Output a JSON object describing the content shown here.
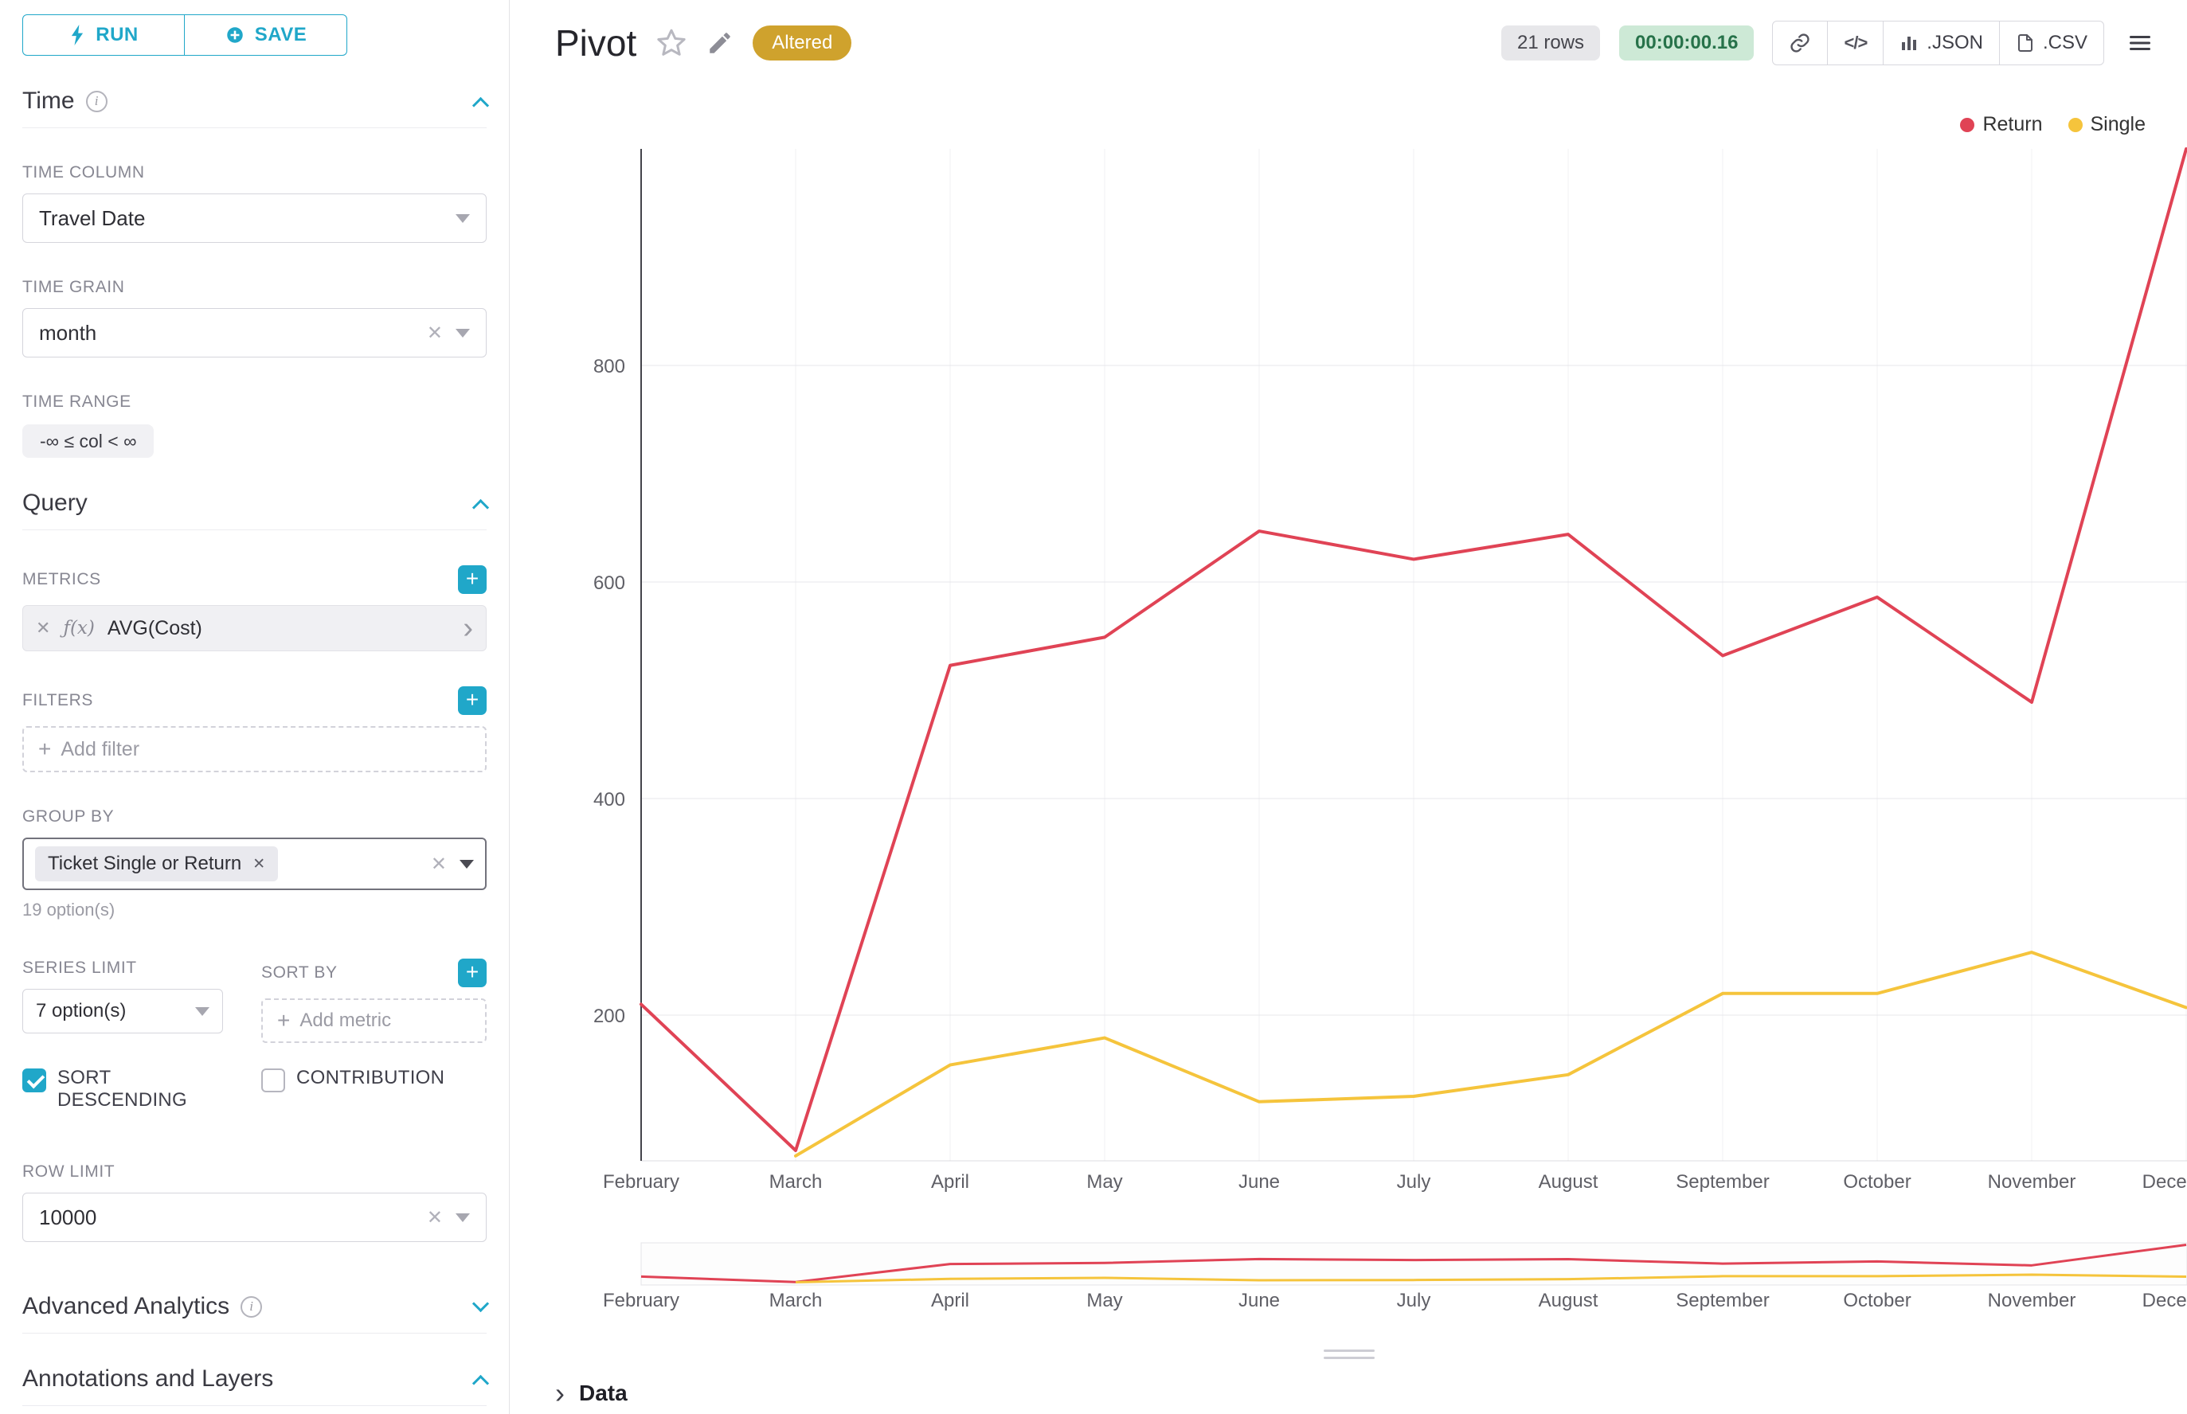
{
  "icons": {
    "plus": "+",
    "close": "✕",
    "chevron_right": "›",
    "info_i": "i",
    "code": "</>"
  },
  "colors": {
    "accent": "#20a7c9",
    "series_return": "#e04355",
    "series_single": "#f5c43c",
    "altered_bg": "#cfa22d",
    "timer_bg": "#cde9d6",
    "timer_text": "#27724a"
  },
  "sidebar": {
    "run_label": "RUN",
    "save_label": "SAVE",
    "time": {
      "title": "Time",
      "time_column_label": "TIME COLUMN",
      "time_column_value": "Travel Date",
      "time_grain_label": "TIME GRAIN",
      "time_grain_value": "month",
      "time_range_label": "TIME RANGE",
      "time_range_value": "-∞ ≤ col < ∞"
    },
    "query": {
      "title": "Query",
      "metrics_label": "METRICS",
      "metric_fx": "ƒ(x)",
      "metric_value": "AVG(Cost)",
      "filters_label": "FILTERS",
      "add_filter_label": "Add filter",
      "group_by_label": "GROUP BY",
      "group_by_tag": "Ticket Single or Return",
      "group_by_options_hint": "19 option(s)",
      "series_limit_label": "SERIES LIMIT",
      "series_limit_value": "7 option(s)",
      "sort_by_label": "SORT BY",
      "add_metric_label": "Add metric",
      "sort_descending_label": "SORT DESCENDING",
      "contribution_label": "CONTRIBUTION",
      "row_limit_label": "ROW LIMIT",
      "row_limit_value": "10000"
    },
    "advanced_analytics_title": "Advanced Analytics",
    "annotations_title": "Annotations and Layers"
  },
  "header": {
    "title": "Pivot",
    "altered_badge": "Altered",
    "rows_badge": "21 rows",
    "timer_badge": "00:00:00.16",
    "json_label": ".JSON",
    "csv_label": ".CSV"
  },
  "footer": {
    "data_label": "Data"
  },
  "chart_data": {
    "type": "line",
    "title": "Pivot",
    "categories": [
      "February",
      "March",
      "April",
      "May",
      "June",
      "July",
      "August",
      "September",
      "October",
      "November",
      "December"
    ],
    "series": [
      {
        "name": "Return",
        "color": "#e04355",
        "values": [
          210,
          75,
          523,
          549,
          647,
          621,
          644,
          532,
          586,
          489,
          1000
        ]
      },
      {
        "name": "Single",
        "color": "#f5c43c",
        "values": [
          null,
          70,
          154,
          179,
          120,
          125,
          145,
          220,
          220,
          258,
          207
        ]
      }
    ],
    "xlabel": "",
    "ylabel": "",
    "yticks": [
      200,
      400,
      600,
      800
    ],
    "ylim": [
      60,
      1000
    ],
    "grid": true,
    "legend_position": "top-right",
    "has_mini_preview": true
  }
}
